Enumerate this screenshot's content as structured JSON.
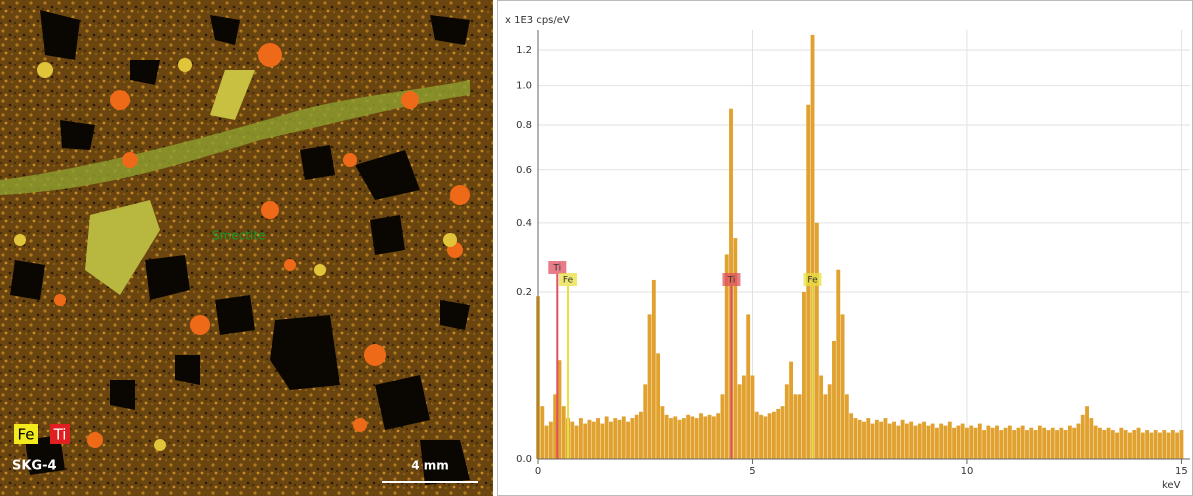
{
  "image": {
    "element_labels": [
      {
        "label": "Fe",
        "color": "#f2ea1c"
      },
      {
        "label": "Ti",
        "color": "#e02020"
      }
    ],
    "sample": "SKG-4",
    "mineral": "Smectite",
    "scale_bar": "4 mm"
  },
  "chart_data": {
    "type": "bar",
    "y_label": "x 1E3 cps/eV",
    "x_label": "keV",
    "scale": "sqrt",
    "color": "#e0a12e",
    "grid": true,
    "xlim": [
      0,
      15.2
    ],
    "ylim": [
      0,
      1.32
    ],
    "xticks": [
      0,
      5,
      10,
      15
    ],
    "yticks": [
      {
        "value": 0,
        "label": "0.0"
      },
      0.2,
      0.4,
      0.6,
      0.8,
      {
        "value": 1,
        "label": "1.0"
      },
      1.2
    ],
    "annotations": [
      {
        "label": "Ti",
        "x": 0.45,
        "color": "#e05060"
      },
      {
        "label": "Fe",
        "x": 0.7,
        "color": "#e8e040"
      },
      {
        "label": "Ti",
        "x": 4.51,
        "color": "#e05060"
      },
      {
        "label": "Fe",
        "x": 6.4,
        "color": "#e8e040"
      }
    ],
    "x": [
      0,
      0.1,
      0.2,
      0.3,
      0.4,
      0.5,
      0.6,
      0.7,
      0.8,
      0.9,
      1,
      1.1,
      1.2,
      1.3,
      1.4,
      1.5,
      1.6,
      1.7,
      1.8,
      1.9,
      2,
      2.1,
      2.2,
      2.3,
      2.4,
      2.5,
      2.6,
      2.7,
      2.8,
      2.9,
      3,
      3.1,
      3.2,
      3.3,
      3.4,
      3.5,
      3.6,
      3.7,
      3.8,
      3.9,
      4,
      4.1,
      4.2,
      4.3,
      4.4,
      4.5,
      4.6,
      4.7,
      4.8,
      4.9,
      5,
      5.1,
      5.2,
      5.3,
      5.4,
      5.5,
      5.6,
      5.7,
      5.8,
      5.9,
      6,
      6.1,
      6.2,
      6.3,
      6.4,
      6.5,
      6.6,
      6.7,
      6.8,
      6.9,
      7,
      7.1,
      7.2,
      7.3,
      7.4,
      7.5,
      7.6,
      7.7,
      7.8,
      7.9,
      8,
      8.1,
      8.2,
      8.3,
      8.4,
      8.5,
      8.6,
      8.7,
      8.8,
      8.9,
      9,
      9.1,
      9.2,
      9.3,
      9.4,
      9.5,
      9.6,
      9.7,
      9.8,
      9.9,
      10,
      10.1,
      10.2,
      10.3,
      10.4,
      10.5,
      10.6,
      10.7,
      10.8,
      10.9,
      11,
      11.1,
      11.2,
      11.3,
      11.4,
      11.5,
      11.6,
      11.7,
      11.8,
      11.9,
      12,
      12.1,
      12.2,
      12.3,
      12.4,
      12.5,
      12.6,
      12.7,
      12.8,
      12.9,
      13,
      13.1,
      13.2,
      13.3,
      13.4,
      13.5,
      13.6,
      13.7,
      13.8,
      13.9,
      14,
      14.1,
      14.2,
      14.3,
      14.4,
      14.5,
      14.6,
      14.7,
      14.8,
      14.9,
      15
    ],
    "values": [
      0.19,
      0.02,
      0.008,
      0.01,
      0.03,
      0.07,
      0.02,
      0.012,
      0.01,
      0.008,
      0.012,
      0.009,
      0.011,
      0.01,
      0.012,
      0.009,
      0.013,
      0.01,
      0.012,
      0.011,
      0.013,
      0.01,
      0.012,
      0.014,
      0.016,
      0.04,
      0.15,
      0.23,
      0.08,
      0.02,
      0.014,
      0.012,
      0.013,
      0.011,
      0.012,
      0.014,
      0.013,
      0.012,
      0.015,
      0.013,
      0.014,
      0.013,
      0.015,
      0.03,
      0.3,
      0.88,
      0.35,
      0.04,
      0.05,
      0.15,
      0.05,
      0.016,
      0.014,
      0.013,
      0.015,
      0.016,
      0.018,
      0.02,
      0.04,
      0.068,
      0.03,
      0.03,
      0.2,
      0.9,
      1.29,
      0.4,
      0.05,
      0.03,
      0.04,
      0.1,
      0.257,
      0.15,
      0.03,
      0.015,
      0.012,
      0.011,
      0.01,
      0.012,
      0.009,
      0.011,
      0.01,
      0.012,
      0.009,
      0.01,
      0.008,
      0.011,
      0.009,
      0.01,
      0.008,
      0.009,
      0.01,
      0.008,
      0.009,
      0.007,
      0.009,
      0.008,
      0.01,
      0.007,
      0.008,
      0.009,
      0.007,
      0.008,
      0.007,
      0.009,
      0.006,
      0.008,
      0.007,
      0.008,
      0.006,
      0.007,
      0.008,
      0.006,
      0.007,
      0.008,
      0.006,
      0.007,
      0.006,
      0.008,
      0.007,
      0.006,
      0.007,
      0.006,
      0.007,
      0.006,
      0.008,
      0.007,
      0.009,
      0.014,
      0.02,
      0.012,
      0.008,
      0.007,
      0.006,
      0.007,
      0.006,
      0.005,
      0.007,
      0.006,
      0.005,
      0.006,
      0.007,
      0.005,
      0.006,
      0.005,
      0.006,
      0.005,
      0.006,
      0.005,
      0.006,
      0.005,
      0.006
    ]
  }
}
